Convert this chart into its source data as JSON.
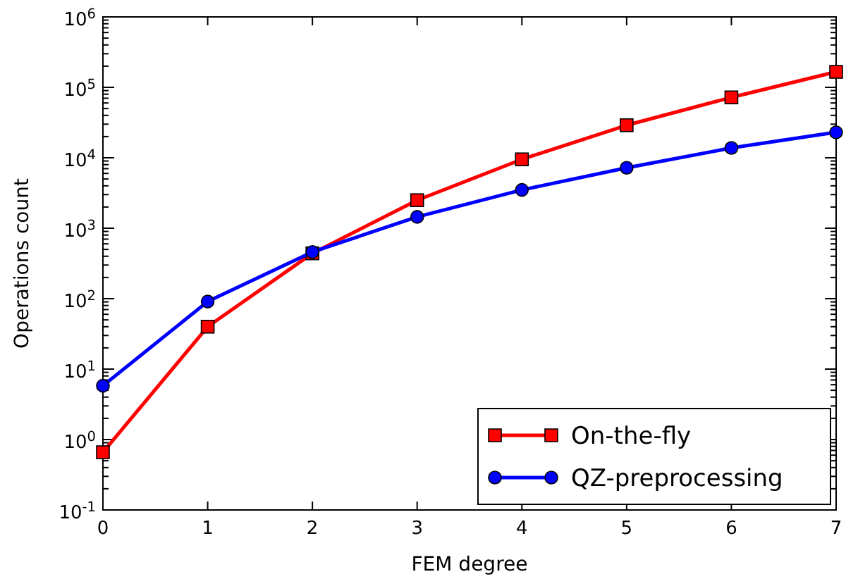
{
  "chart_data": {
    "type": "line",
    "xlabel": "FEM degree",
    "ylabel": "Operations count",
    "log": "y",
    "xlim": [
      0,
      7
    ],
    "xticks": [
      0,
      1,
      2,
      3,
      4,
      5,
      6,
      7
    ],
    "ylim": [
      0.1,
      1000000
    ],
    "yticks": [
      {
        "value": 0.1,
        "label": "10$^{-1}$"
      },
      {
        "value": 1,
        "label": "10$^{0}$"
      },
      {
        "value": 10,
        "label": "10$^{1}$"
      },
      {
        "value": 100,
        "label": "10$^{2}$"
      },
      {
        "value": 1000,
        "label": "10$^{3}$"
      },
      {
        "value": 10000,
        "label": "10$^{4}$"
      },
      {
        "value": 100000,
        "label": "10$^{5}$"
      },
      {
        "value": 1000000,
        "label": "10$^{6}$"
      }
    ],
    "x": [
      0,
      1,
      2,
      3,
      4,
      5,
      6,
      7
    ],
    "grid": false,
    "legend": "bottom right",
    "line_style": "solid",
    "series": [
      {
        "name": "On-the-fly",
        "color": "#ff0000",
        "marker": "square",
        "values": [
          0.66,
          40,
          440,
          2500,
          9500,
          29000,
          72000,
          166000
        ]
      },
      {
        "name": "QZ-preprocessing",
        "color": "#0000ff",
        "marker": "circle",
        "values": [
          5.8,
          91,
          460,
          1450,
          3500,
          7200,
          13800,
          23000
        ]
      }
    ]
  }
}
